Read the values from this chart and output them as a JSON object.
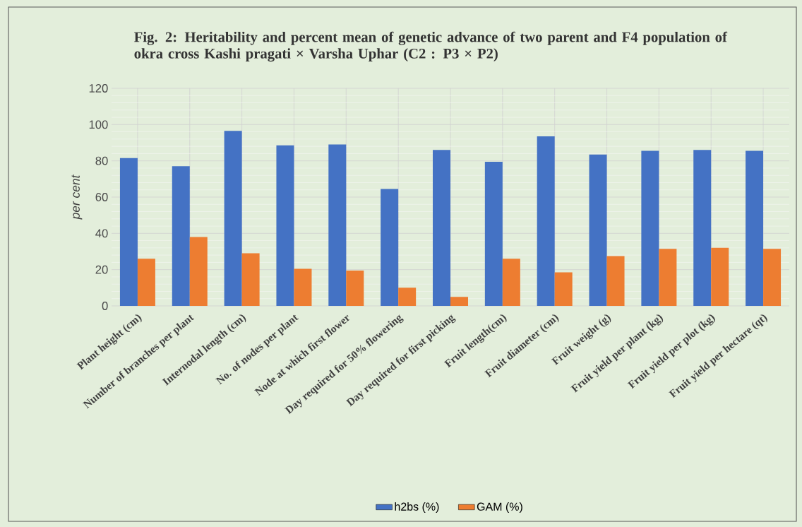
{
  "chart_data": {
    "type": "bar",
    "title": "Fig. 2: Heritability and percent mean of genetic advance of two parent and F4 population of okra cross Kashi pragati × Varsha Uphar (C2 : P3 × P2)",
    "ylabel": "per cent",
    "categories": [
      "Plant height (cm)",
      "Number of branches per plant",
      "Internodal length (cm)",
      "No. of nodes per plant",
      "Node at which first flower",
      "Day required for 50%  flowering",
      "Day required for first picking",
      "Fruit length(cm)",
      "Fruit diameter (cm)",
      "Fruit weight (g)",
      "Fruit yield per plant (kg)",
      "Fruit yield per plot (kg)",
      "Fruit yield per hectare (qt)"
    ],
    "series": [
      {
        "name": "h2bs (%)",
        "color": "#4472c4",
        "values": [
          81.5,
          77,
          96.5,
          88.5,
          89,
          64.5,
          86,
          79.5,
          93.5,
          83.5,
          85.5,
          86,
          85.5
        ]
      },
      {
        "name": "GAM (%)",
        "color": "#ed7d31",
        "values": [
          26,
          38,
          29,
          20.5,
          19.5,
          10,
          5,
          26,
          18.5,
          27.5,
          31.5,
          32,
          31.5
        ]
      }
    ],
    "ylim": [
      0,
      120
    ],
    "yticks": [
      0,
      20,
      40,
      60,
      80,
      100,
      120
    ],
    "grid": true,
    "legend": "bottom"
  }
}
